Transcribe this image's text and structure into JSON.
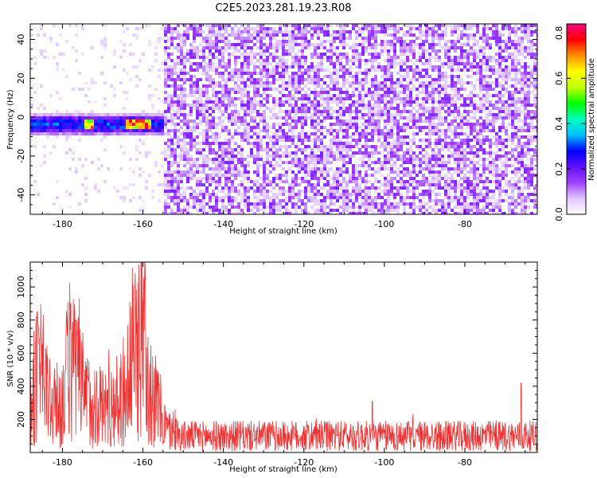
{
  "title": "C2E5.2023.281.19.23.R08",
  "chart_data": [
    {
      "type": "heatmap",
      "xlabel": "Height of straight line (km)",
      "ylabel": "Frequency (Hz)",
      "xlim": [
        -188,
        -62
      ],
      "ylim": [
        -50,
        48
      ],
      "x_ticks": [
        -180,
        -160,
        -140,
        -120,
        -100,
        -80
      ],
      "y_ticks": [
        -40,
        -20,
        0,
        20,
        40
      ],
      "colorbar": {
        "label": "Normalized spectral amplitude",
        "range": [
          0,
          0.84
        ],
        "ticks": [
          0.0,
          0.2,
          0.4,
          0.6,
          0.8
        ],
        "colors": [
          "#ffffff",
          "#e0c8ff",
          "#a040ff",
          "#6010ff",
          "#0000ff",
          "#00c0ff",
          "#00ffc0",
          "#00ff00",
          "#c0ff00",
          "#ffff00",
          "#ff9000",
          "#ff0000",
          "#ff0080"
        ]
      },
      "signal": {
        "x_range": [
          -188,
          -155
        ],
        "freq_center": -3,
        "freq_width": 6,
        "peak_positions": [
          -174,
          -163,
          -160
        ]
      },
      "noise_onset": -155
    },
    {
      "type": "line",
      "xlabel": "Height of straight line (km)",
      "ylabel": "SNR (10 * v/v)",
      "xlim": [
        -188,
        -62
      ],
      "ylim": [
        0,
        1150
      ],
      "x_ticks": [
        -180,
        -160,
        -140,
        -120,
        -100,
        -80
      ],
      "y_ticks": [
        200,
        400,
        600,
        800,
        1000
      ],
      "color": "#ee3333",
      "series_profile": [
        {
          "x": -188,
          "y": 320
        },
        {
          "x": -186,
          "y": 560
        },
        {
          "x": -184,
          "y": 430
        },
        {
          "x": -182,
          "y": 300
        },
        {
          "x": -180,
          "y": 340
        },
        {
          "x": -178,
          "y": 650
        },
        {
          "x": -176,
          "y": 480
        },
        {
          "x": -174,
          "y": 360
        },
        {
          "x": -172,
          "y": 330
        },
        {
          "x": -170,
          "y": 310
        },
        {
          "x": -168,
          "y": 320
        },
        {
          "x": -166,
          "y": 340
        },
        {
          "x": -164,
          "y": 460
        },
        {
          "x": -162,
          "y": 720
        },
        {
          "x": -160,
          "y": 820
        },
        {
          "x": -159,
          "y": 680
        },
        {
          "x": -158,
          "y": 420
        },
        {
          "x": -156,
          "y": 300
        },
        {
          "x": -154,
          "y": 150
        },
        {
          "x": -150,
          "y": 110
        },
        {
          "x": -62,
          "y": 110
        }
      ],
      "peaks": [
        {
          "x": -186,
          "y": 760
        },
        {
          "x": -178,
          "y": 900
        },
        {
          "x": -162,
          "y": 1000
        },
        {
          "x": -159.5,
          "y": 1150
        },
        {
          "x": -152,
          "y": 260
        },
        {
          "x": -103,
          "y": 310
        },
        {
          "x": -66,
          "y": 420
        }
      ]
    }
  ]
}
